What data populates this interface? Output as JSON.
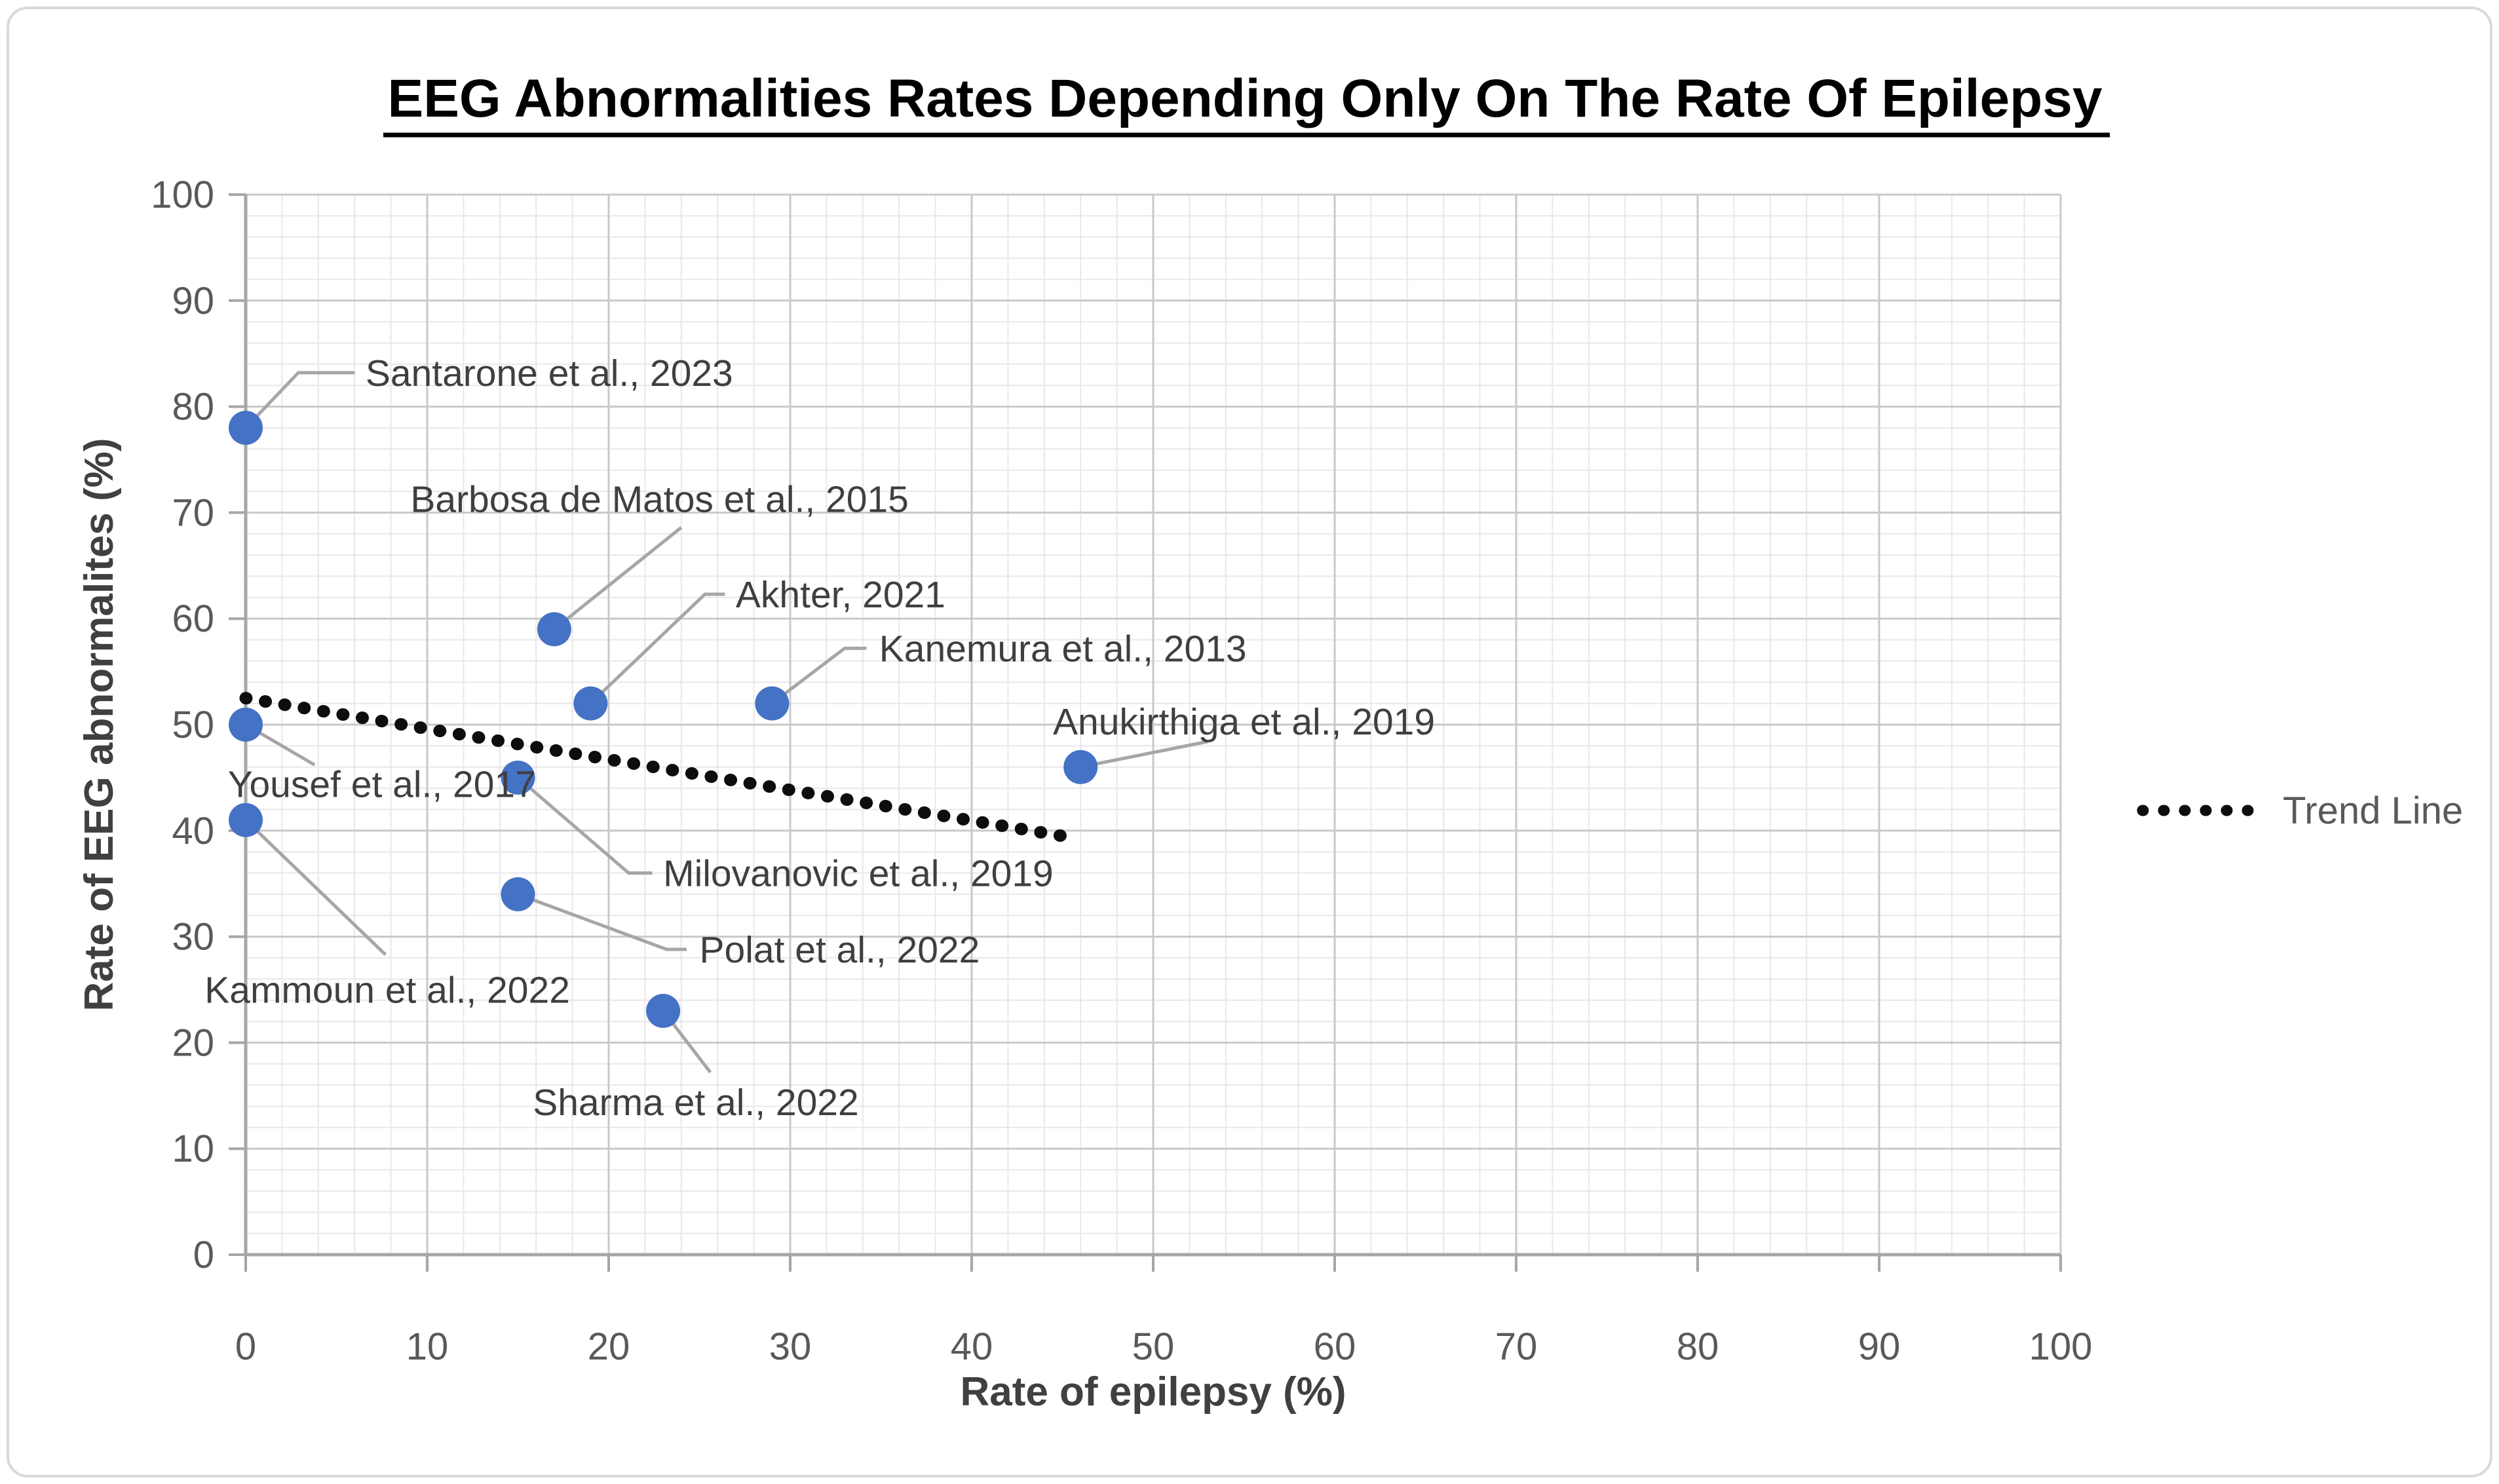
{
  "page": {
    "background": "#ffffff",
    "border_color": "#d9d9d9"
  },
  "chart_data": {
    "type": "scatter",
    "title": "EEG Abnormalities Rates Depending Only On The Rate Of Epilepsy",
    "xlabel": "Rate of epilepsy (%)",
    "ylabel": "Rate of EEG abnormalites (%)",
    "xlim": [
      0,
      100
    ],
    "ylim": [
      0,
      100
    ],
    "x_ticks": [
      0,
      10,
      20,
      30,
      40,
      50,
      60,
      70,
      80,
      90,
      100
    ],
    "y_ticks": [
      0,
      10,
      20,
      30,
      40,
      50,
      60,
      70,
      80,
      90,
      100
    ],
    "grid": {
      "major_step": 10,
      "minor_step": 2,
      "major_color": "#c9c9c9",
      "minor_color": "#e8e8e8"
    },
    "style": {
      "marker_color": "#4472C4",
      "marker_radius_px": 26,
      "leader_color": "#a6a6a6",
      "label_color": "#3f3f3f",
      "axis_color": "#a6a6a6",
      "tick_label_color": "#595959",
      "trend_color": "#0d0d0d",
      "legend_position": "right"
    },
    "points": [
      {
        "label": "Santarone et al., 2023",
        "x": 0,
        "y": 78,
        "anchor": "start",
        "label_pos": {
          "x": 6.6,
          "y": 83.2
        },
        "leader": [
          [
            0,
            78
          ],
          [
            2.9,
            83.2
          ],
          [
            6,
            83.2
          ]
        ]
      },
      {
        "label": "Yousef et al., 2017",
        "x": 0,
        "y": 50,
        "anchor": "middle",
        "label_pos": {
          "x": 7.5,
          "y": 44.4
        },
        "leader": [
          [
            0,
            50
          ],
          [
            3.8,
            46.2
          ]
        ]
      },
      {
        "label": "Kammoun et al., 2022",
        "x": 0,
        "y": 41,
        "anchor": "middle",
        "label_pos": {
          "x": 7.8,
          "y": 25.0
        },
        "leader": [
          [
            0,
            41
          ],
          [
            7.7,
            28.3
          ]
        ]
      },
      {
        "label": "Barbosa de Matos et al., 2015",
        "x": 17,
        "y": 59,
        "anchor": "middle",
        "label_pos": {
          "x": 22.8,
          "y": 71.3
        },
        "leader": [
          [
            17,
            59
          ],
          [
            24,
            68.6
          ]
        ]
      },
      {
        "label": "Akhter, 2021",
        "x": 19,
        "y": 52,
        "anchor": "start",
        "label_pos": {
          "x": 27.0,
          "y": 62.3
        },
        "leader": [
          [
            19,
            52
          ],
          [
            25.3,
            62.3
          ],
          [
            26.4,
            62.3
          ]
        ]
      },
      {
        "label": "Kanemura et al., 2013",
        "x": 29,
        "y": 52,
        "anchor": "start",
        "label_pos": {
          "x": 34.9,
          "y": 57.2
        },
        "leader": [
          [
            29,
            52
          ],
          [
            33,
            57.2
          ],
          [
            34.2,
            57.2
          ]
        ]
      },
      {
        "label": "Milovanovic et al., 2019",
        "x": 15,
        "y": 45,
        "anchor": "start",
        "label_pos": {
          "x": 23.0,
          "y": 36.0
        },
        "leader": [
          [
            15,
            45
          ],
          [
            21.1,
            36
          ],
          [
            22.4,
            36
          ]
        ]
      },
      {
        "label": "Polat et al., 2022",
        "x": 15,
        "y": 34,
        "anchor": "start",
        "label_pos": {
          "x": 25.0,
          "y": 28.8
        },
        "leader": [
          [
            15,
            34
          ],
          [
            23.2,
            28.8
          ],
          [
            24.3,
            28.8
          ]
        ]
      },
      {
        "label": "Sharma et al., 2022",
        "x": 23,
        "y": 23,
        "anchor": "middle",
        "label_pos": {
          "x": 24.8,
          "y": 14.4
        },
        "leader": [
          [
            23,
            23
          ],
          [
            25.6,
            17.2
          ]
        ]
      },
      {
        "label": "Anukirthiga et al., 2019",
        "x": 46,
        "y": 46,
        "anchor": "middle",
        "label_pos": {
          "x": 55.0,
          "y": 50.3
        },
        "leader": [
          [
            46,
            46
          ],
          [
            53,
            48.4
          ]
        ]
      }
    ],
    "trend_line": {
      "x1": 0,
      "y1": 52.5,
      "x2": 45,
      "y2": 39.5
    },
    "legend": {
      "label": "Trend Line"
    }
  }
}
